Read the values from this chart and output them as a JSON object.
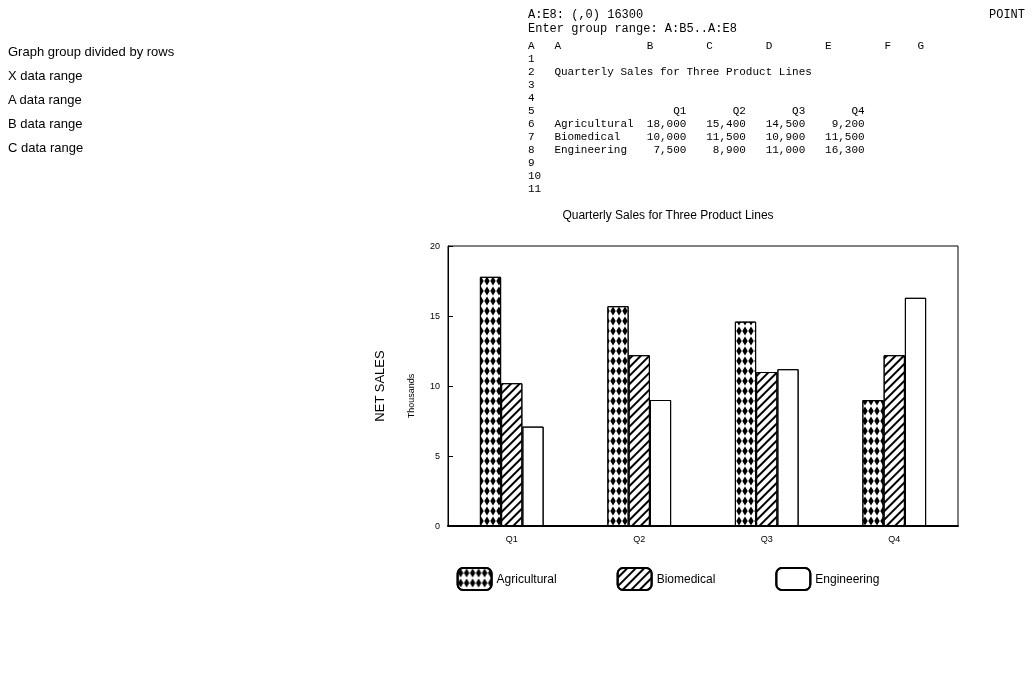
{
  "chart_data": {
    "type": "bar",
    "subtitle": "Quarterly Sales for Three Product Lines",
    "ylabel": "NET SALES",
    "categories": [
      "Q1",
      "Q2",
      "Q3",
      "Q4"
    ],
    "series": [
      {
        "name": "Agricultural",
        "color": "#ffffff",
        "values": [
          17.8,
          15.7,
          14.6,
          9.0
        ]
      },
      {
        "name": "Biomedical",
        "color": "#ffffff",
        "values": [
          10.2,
          12.2,
          11.0,
          12.2
        ]
      },
      {
        "name": "Engineering",
        "color": "#ffffff",
        "values": [
          7.1,
          9.0,
          11.2,
          16.3
        ]
      }
    ],
    "ylim": [
      0,
      20
    ],
    "yticks": [
      0,
      5,
      10,
      15,
      20
    ],
    "legend": "bottom",
    "annotations": [
      "A:E8: (,0) 16300",
      "Enter group range: A:B5..A:E8",
      "POINT",
      "Graph group divided by rows",
      "X data range",
      "A data range",
      "B data range",
      "C data range",
      "A   A             B        C        D        E        F    G",
      "1",
      "2   Quarterly Sales for Three Product Lines",
      "3",
      "4",
      "5                     Q1       Q2       Q3       Q4",
      "6   Agricultural  18,000   15,400   14,500    9,200",
      "7   Biomedical    10,000   11,500   10,900   11,500",
      "8   Engineering    7,500    8,900   11,000   16,300",
      "9",
      "10",
      "11",
      "Thousands"
    ]
  }
}
